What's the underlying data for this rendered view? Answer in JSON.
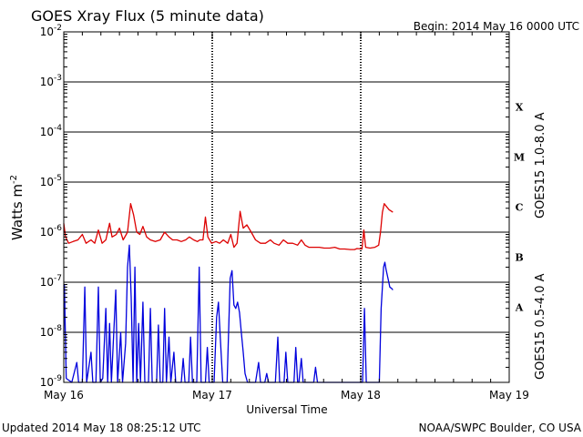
{
  "chart_data": {
    "type": "line",
    "title": "GOES Xray Flux (5 minute data)",
    "begin_label": "Begin:  2014 May 16 0000 UTC",
    "ylabel_base": "Watts m",
    "ylabel_exp": "-2",
    "xlabel": "Universal Time",
    "x_ticks": [
      "May 16",
      "May 17",
      "May 18",
      "May 19"
    ],
    "xlim_hours": [
      0,
      72
    ],
    "y_scale": "log",
    "ylim": [
      1e-09,
      0.01
    ],
    "y_tick_base": "10",
    "y_tick_exps": [
      "-9",
      "-8",
      "-7",
      "-6",
      "-5",
      "-4",
      "-3",
      "-2"
    ],
    "class_labels": [
      "A",
      "B",
      "C",
      "M",
      "X"
    ],
    "grid": true,
    "series": [
      {
        "name": "GOES15 1.0-8.0 A",
        "color": "#dd0000",
        "points": [
          [
            0.0,
            1.5e-06
          ],
          [
            0.3,
            8e-07
          ],
          [
            0.8,
            6e-07
          ],
          [
            1.5,
            6.5e-07
          ],
          [
            2.3,
            7e-07
          ],
          [
            3.0,
            9e-07
          ],
          [
            3.6,
            6e-07
          ],
          [
            4.4,
            7e-07
          ],
          [
            5.0,
            6e-07
          ],
          [
            5.6,
            1.1e-06
          ],
          [
            6.2,
            6e-07
          ],
          [
            6.8,
            7e-07
          ],
          [
            7.4,
            1.5e-06
          ],
          [
            7.8,
            8e-07
          ],
          [
            8.5,
            9e-07
          ],
          [
            9.0,
            1.2e-06
          ],
          [
            9.6,
            7e-07
          ],
          [
            10.3,
            1e-06
          ],
          [
            10.8,
            3.7e-06
          ],
          [
            11.3,
            2.2e-06
          ],
          [
            11.8,
            1e-06
          ],
          [
            12.3,
            9e-07
          ],
          [
            12.8,
            1.3e-06
          ],
          [
            13.4,
            8e-07
          ],
          [
            14.0,
            7e-07
          ],
          [
            14.8,
            6.5e-07
          ],
          [
            15.6,
            7e-07
          ],
          [
            16.3,
            1e-06
          ],
          [
            17.0,
            8e-07
          ],
          [
            17.6,
            7e-07
          ],
          [
            18.3,
            7e-07
          ],
          [
            19.0,
            6.5e-07
          ],
          [
            19.7,
            7e-07
          ],
          [
            20.3,
            8e-07
          ],
          [
            21.0,
            7e-07
          ],
          [
            21.6,
            6.5e-07
          ],
          [
            22.0,
            7e-07
          ],
          [
            22.5,
            7e-07
          ],
          [
            22.9,
            2e-06
          ],
          [
            23.3,
            8e-07
          ],
          [
            23.9,
            6e-07
          ],
          [
            24.6,
            6.5e-07
          ],
          [
            25.2,
            6e-07
          ],
          [
            25.8,
            7e-07
          ],
          [
            26.5,
            6e-07
          ],
          [
            27.0,
            9e-07
          ],
          [
            27.5,
            5e-07
          ],
          [
            28.0,
            6e-07
          ],
          [
            28.5,
            2.6e-06
          ],
          [
            29.0,
            1.2e-06
          ],
          [
            29.6,
            1.4e-06
          ],
          [
            30.3,
            1e-06
          ],
          [
            31.0,
            7e-07
          ],
          [
            31.8,
            6e-07
          ],
          [
            32.6,
            6e-07
          ],
          [
            33.4,
            7e-07
          ],
          [
            34.0,
            6e-07
          ],
          [
            34.8,
            5.5e-07
          ],
          [
            35.5,
            7e-07
          ],
          [
            36.2,
            6e-07
          ],
          [
            37.0,
            6e-07
          ],
          [
            37.8,
            5.5e-07
          ],
          [
            38.4,
            7e-07
          ],
          [
            39.0,
            5.5e-07
          ],
          [
            39.6,
            5e-07
          ],
          [
            40.5,
            5e-07
          ],
          [
            41.3,
            5e-07
          ],
          [
            42.1,
            4.8e-07
          ],
          [
            43.0,
            4.8e-07
          ],
          [
            43.8,
            5e-07
          ],
          [
            44.6,
            4.6e-07
          ],
          [
            45.4,
            4.6e-07
          ],
          [
            46.3,
            4.5e-07
          ],
          [
            47.0,
            4.5e-07
          ],
          [
            47.4,
            4.7e-07
          ],
          [
            48.2,
            4.6e-07
          ],
          [
            48.5,
            1.1e-06
          ],
          [
            48.8,
            5e-07
          ],
          [
            49.5,
            4.8e-07
          ],
          [
            50.3,
            5e-07
          ],
          [
            50.9,
            5.5e-07
          ],
          [
            51.2,
            1e-06
          ],
          [
            51.5,
            2.5e-06
          ],
          [
            51.8,
            3.7e-06
          ],
          [
            52.2,
            3.2e-06
          ],
          [
            52.6,
            2.8e-06
          ],
          [
            53.0,
            2.6e-06
          ],
          [
            53.2,
            2.5e-06
          ]
        ]
      },
      {
        "name": "GOES15 0.5-4.0 A",
        "color": "#0000dd",
        "points": [
          [
            0.0,
            9e-09
          ],
          [
            0.1,
            9e-08
          ],
          [
            0.4,
            1.2e-09
          ],
          [
            1.3,
            1e-09
          ],
          [
            2.1,
            2.5e-09
          ],
          [
            2.4,
            1e-09
          ],
          [
            3.0,
            1e-09
          ],
          [
            3.4,
            8e-08
          ],
          [
            3.7,
            1e-09
          ],
          [
            4.4,
            4e-09
          ],
          [
            4.7,
            1e-09
          ],
          [
            5.2,
            1e-09
          ],
          [
            5.6,
            8e-08
          ],
          [
            5.9,
            1e-09
          ],
          [
            6.3,
            1.2e-09
          ],
          [
            6.8,
            3e-08
          ],
          [
            7.1,
            1e-09
          ],
          [
            7.4,
            1.5e-08
          ],
          [
            7.7,
            1e-09
          ],
          [
            8.4,
            7e-08
          ],
          [
            8.7,
            1e-09
          ],
          [
            9.2,
            1e-08
          ],
          [
            9.5,
            1e-09
          ],
          [
            10.0,
            6e-09
          ],
          [
            10.3,
            2e-07
          ],
          [
            10.6,
            5.5e-07
          ],
          [
            10.9,
            5e-08
          ],
          [
            11.2,
            1e-09
          ],
          [
            11.5,
            2e-07
          ],
          [
            11.8,
            1e-09
          ],
          [
            12.1,
            1.5e-08
          ],
          [
            12.4,
            1e-09
          ],
          [
            12.8,
            4e-08
          ],
          [
            13.1,
            1e-09
          ],
          [
            13.7,
            1e-09
          ],
          [
            14.0,
            3e-08
          ],
          [
            14.3,
            1e-09
          ],
          [
            15.0,
            1e-09
          ],
          [
            15.3,
            1.4e-08
          ],
          [
            15.6,
            1e-09
          ],
          [
            16.0,
            1e-09
          ],
          [
            16.3,
            3e-08
          ],
          [
            16.6,
            1e-09
          ],
          [
            17.0,
            8e-09
          ],
          [
            17.3,
            1e-09
          ],
          [
            17.8,
            4e-09
          ],
          [
            18.1,
            1e-09
          ],
          [
            19.0,
            1e-09
          ],
          [
            19.3,
            3e-09
          ],
          [
            19.6,
            1e-09
          ],
          [
            20.2,
            1e-09
          ],
          [
            20.5,
            8e-09
          ],
          [
            20.8,
            1e-09
          ],
          [
            21.5,
            1e-09
          ],
          [
            21.9,
            2e-07
          ],
          [
            22.2,
            1e-09
          ],
          [
            22.9,
            1e-09
          ],
          [
            23.2,
            5e-09
          ],
          [
            23.5,
            1e-09
          ],
          [
            24.3,
            1e-09
          ],
          [
            24.7,
            2e-08
          ],
          [
            25.0,
            4e-08
          ],
          [
            25.3,
            8e-09
          ],
          [
            25.7,
            1e-09
          ],
          [
            26.0,
            1e-09
          ],
          [
            26.4,
            1e-09
          ],
          [
            26.9,
            1.2e-07
          ],
          [
            27.2,
            1.7e-07
          ],
          [
            27.5,
            3.5e-08
          ],
          [
            27.8,
            3e-08
          ],
          [
            28.1,
            4e-08
          ],
          [
            28.4,
            2.5e-08
          ],
          [
            28.7,
            1e-08
          ],
          [
            29.0,
            4e-09
          ],
          [
            29.3,
            1.5e-09
          ],
          [
            29.7,
            1e-09
          ],
          [
            31.0,
            1e-09
          ],
          [
            31.5,
            2.5e-09
          ],
          [
            31.8,
            1e-09
          ],
          [
            32.5,
            1e-09
          ],
          [
            32.8,
            1.5e-09
          ],
          [
            33.1,
            1e-09
          ],
          [
            34.2,
            1e-09
          ],
          [
            34.6,
            8e-09
          ],
          [
            34.9,
            1e-09
          ],
          [
            35.6,
            1e-09
          ],
          [
            35.9,
            4e-09
          ],
          [
            36.2,
            1e-09
          ],
          [
            37.2,
            1e-09
          ],
          [
            37.5,
            5e-09
          ],
          [
            37.8,
            1e-09
          ],
          [
            38.0,
            1e-09
          ],
          [
            38.4,
            3e-09
          ],
          [
            38.7,
            1e-09
          ],
          [
            40.4,
            1e-09
          ],
          [
            40.7,
            2e-09
          ],
          [
            41.0,
            1e-09
          ],
          [
            41.5,
            1e-09
          ],
          [
            42.0,
            1e-09
          ],
          [
            43.0,
            1e-09
          ],
          [
            44.0,
            1e-09
          ],
          [
            45.0,
            1e-09
          ],
          [
            46.0,
            1e-09
          ],
          [
            47.0,
            1e-09
          ],
          [
            47.5,
            1e-09
          ],
          [
            48.0,
            1e-09
          ],
          [
            48.3,
            1e-09
          ],
          [
            48.6,
            3e-08
          ],
          [
            48.9,
            1e-09
          ],
          [
            49.5,
            1e-09
          ],
          [
            50.3,
            1e-09
          ],
          [
            51.0,
            1e-09
          ],
          [
            51.3,
            3e-08
          ],
          [
            51.5,
            8e-08
          ],
          [
            51.7,
            2e-07
          ],
          [
            51.9,
            2.5e-07
          ],
          [
            52.1,
            1.8e-07
          ],
          [
            52.4,
            1.2e-07
          ],
          [
            52.7,
            8e-08
          ],
          [
            53.0,
            7.5e-08
          ],
          [
            53.2,
            7e-08
          ]
        ]
      }
    ]
  },
  "footer": {
    "updated": "Updated 2014 May 18 08:25:12 UTC",
    "source": "NOAA/SWPC Boulder, CO USA"
  }
}
